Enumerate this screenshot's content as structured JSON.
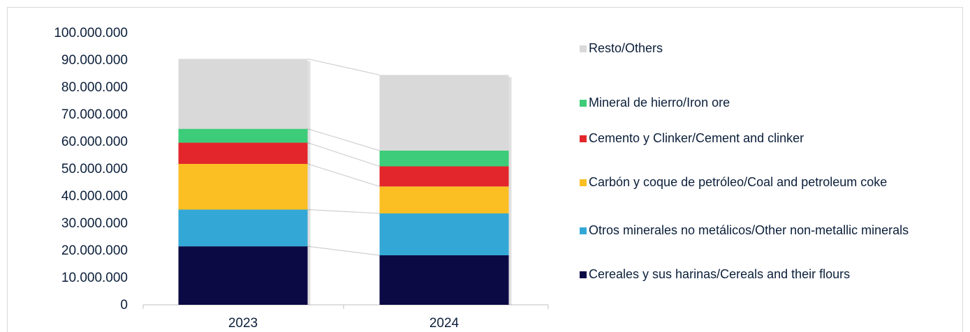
{
  "chart_data": {
    "type": "bar",
    "stacked": true,
    "categories": [
      "2023",
      "2024"
    ],
    "ylim": [
      0,
      100000000
    ],
    "yticks": [
      "0",
      "10.000.000",
      "20.000.000",
      "30.000.000",
      "40.000.000",
      "50.000.000",
      "60.000.000",
      "70.000.000",
      "80.000.000",
      "90.000.000",
      "100.000.000"
    ],
    "ytick_values": [
      0,
      10000000,
      20000000,
      30000000,
      40000000,
      50000000,
      60000000,
      70000000,
      80000000,
      90000000,
      100000000
    ],
    "series": [
      {
        "name": "Cereales y sus harinas/Cereals and their flours",
        "color": "#0b0a45",
        "values": [
          21500000,
          18200000
        ]
      },
      {
        "name": "Otros minerales no metálicos/Other non-metallic minerals",
        "color": "#33a8d6",
        "values": [
          13500000,
          15400000
        ]
      },
      {
        "name": "Carbón y coque de petróleo/Coal and petroleum coke",
        "color": "#fbbf24",
        "values": [
          16800000,
          9900000
        ]
      },
      {
        "name": "Cemento y Clinker/Cement and clinker",
        "color": "#e3262b",
        "values": [
          7800000,
          7400000
        ]
      },
      {
        "name": "Mineral de hierro/Iron ore",
        "color": "#3dcc79",
        "values": [
          5100000,
          5800000
        ]
      },
      {
        "name": "Resto/Others",
        "color": "#d9d9d9",
        "values": [
          25700000,
          27800000
        ]
      }
    ],
    "legend_position": "right",
    "legend_order": [
      "Resto/Others",
      "Mineral de hierro/Iron ore",
      "Cemento y Clinker/Cement and clinker",
      "Carbón y coque de petróleo/Coal and petroleum coke",
      "Otros minerales no metálicos/Other non-metallic minerals",
      "Cereales y sus harinas/Cereals and their flours"
    ],
    "grid": false,
    "title": "",
    "xlabel": "",
    "ylabel": ""
  }
}
